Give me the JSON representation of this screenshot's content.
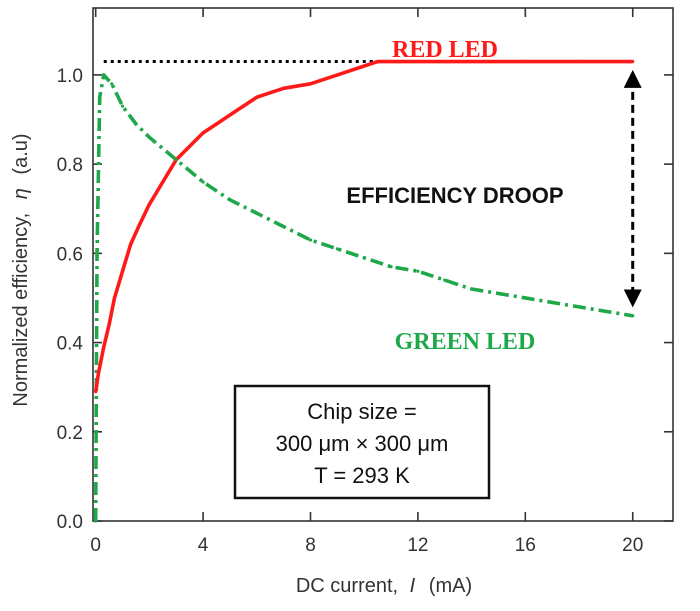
{
  "chart_data": {
    "type": "line",
    "xlabel": {
      "prefix": "DC current,",
      "var": "I",
      "unit": "(mA)"
    },
    "ylabel": {
      "prefix": "Normalized efficiency,",
      "var": "η",
      "unit": "(a.u)"
    },
    "xlim": [
      -0.1,
      21.5
    ],
    "ylim": [
      0.0,
      1.15
    ],
    "xticks": [
      0,
      4,
      8,
      12,
      16,
      20
    ],
    "xtick_labels": [
      "0",
      "4",
      "8",
      "12",
      "16",
      "20"
    ],
    "yticks": [
      0.0,
      0.2,
      0.4,
      0.6,
      0.8,
      1.0
    ],
    "ytick_labels": [
      "0.0",
      "0.2",
      "0.4",
      "0.6",
      "0.8",
      "1.0"
    ],
    "series": [
      {
        "name": "RED LED",
        "color": "#ff1a1a",
        "style": "solid",
        "x": [
          0.0,
          0.1,
          0.3,
          0.5,
          0.7,
          1.0,
          1.3,
          1.6,
          2.0,
          2.5,
          3.0,
          3.5,
          4.0,
          4.5,
          5.0,
          5.5,
          6.0,
          7.0,
          8.0,
          9.0,
          10.0,
          10.5,
          11.0,
          12.0,
          14.0,
          16.0,
          18.0,
          20.0
        ],
        "y": [
          0.29,
          0.33,
          0.39,
          0.44,
          0.5,
          0.56,
          0.62,
          0.66,
          0.71,
          0.76,
          0.81,
          0.84,
          0.87,
          0.89,
          0.91,
          0.93,
          0.95,
          0.97,
          0.98,
          1.0,
          1.02,
          1.03,
          1.03,
          1.03,
          1.03,
          1.03,
          1.03,
          1.03
        ]
      },
      {
        "name": "GREEN LED",
        "color": "#1ea84a",
        "style": "dashdot",
        "x": [
          0.0,
          0.05,
          0.15,
          0.3,
          0.6,
          1.0,
          1.5,
          2.0,
          3.0,
          4.0,
          5.0,
          6.0,
          7.0,
          8.0,
          9.0,
          10.0,
          11.0,
          12.0,
          13.0,
          14.0,
          15.0,
          16.0,
          17.0,
          18.0,
          19.0,
          20.0
        ],
        "y": [
          0.0,
          0.6,
          0.95,
          1.0,
          0.98,
          0.93,
          0.89,
          0.86,
          0.81,
          0.76,
          0.72,
          0.69,
          0.66,
          0.63,
          0.61,
          0.59,
          0.57,
          0.56,
          0.54,
          0.52,
          0.51,
          0.5,
          0.49,
          0.48,
          0.47,
          0.46
        ]
      }
    ],
    "reference_line": {
      "y": 1.03,
      "x_from": 0.3,
      "x_to": 20.0,
      "style": "dotted",
      "color": "#000000"
    },
    "droop_arrow": {
      "x": 20.0,
      "y_from": 1.0,
      "y_to": 0.49,
      "style": "dashed",
      "color": "#000000"
    },
    "annotations": {
      "red_label": "RED LED",
      "green_label": "GREEN LED",
      "droop_label": "EFFICIENCY DROOP",
      "info_box": [
        "Chip size =",
        "300 μm × 300 μm",
        "T = 293 K"
      ]
    }
  }
}
